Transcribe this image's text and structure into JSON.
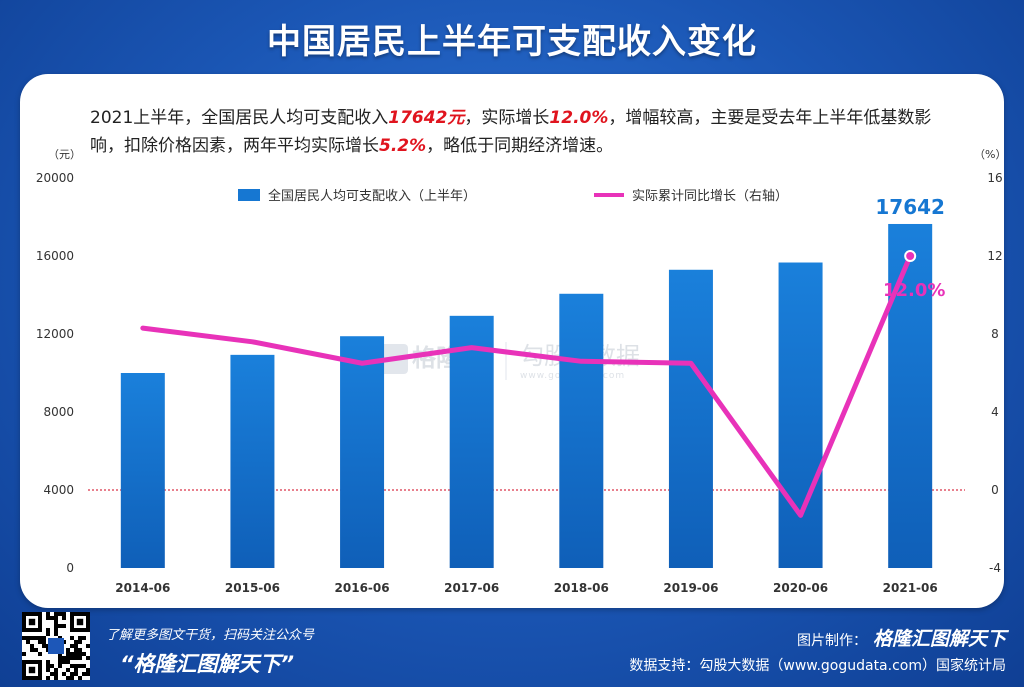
{
  "title": "中国居民上半年可支配收入变化",
  "description": {
    "p1": "2021上半年，全国居民人均可支配收入",
    "income": "17642元",
    "p2": "，实际增长",
    "growth": "12.0%",
    "p3": "，增幅较高，主要是受去年上半年低基数影响，扣除价格因素，两年平均实际增长",
    "avg": "5.2%",
    "p4": "，略低于同期经济增速。"
  },
  "watermark": {
    "logo_text": "格隆汇",
    "name": "勾股大数据",
    "site": "www.gogudata.com"
  },
  "chart_data": {
    "type": "bar",
    "categories": [
      "2014-06",
      "2015-06",
      "2016-06",
      "2017-06",
      "2018-06",
      "2019-06",
      "2020-06",
      "2021-06"
    ],
    "series": [
      {
        "name": "全国居民人均可支配收入（上半年）",
        "type": "bar",
        "axis": "left",
        "values": [
          10000,
          10931,
          11886,
          12932,
          14063,
          15294,
          15666,
          17642
        ],
        "color": "#1677d2"
      },
      {
        "name": "实际累计同比增长（右轴）",
        "type": "line",
        "axis": "right",
        "values": [
          8.3,
          7.6,
          6.5,
          7.3,
          6.6,
          6.5,
          -1.3,
          12.0
        ],
        "color": "#e832b9"
      }
    ],
    "ylabel_left": "（元）",
    "ylabel_right": "（%）",
    "ylim_left": [
      0,
      20000
    ],
    "yticks_left": [
      0,
      4000,
      8000,
      12000,
      16000,
      20000
    ],
    "ylim_right": [
      -4,
      16
    ],
    "yticks_right": [
      -4,
      0,
      4,
      8,
      12,
      16
    ],
    "annotations": {
      "bar_last_label": "17642",
      "line_last_label": "12.0%"
    },
    "zero_line_color": "#d0021b",
    "legend": "top-center"
  },
  "footer": {
    "promo": "了解更多图文干货，扫码关注公众号",
    "slogan": "“格隆汇图解天下”",
    "credit_label": "图片制作：",
    "credit_brand": "格隆汇图解天下",
    "source": "数据支持：勾股大数据（www.gogudata.com）国家统计局"
  }
}
